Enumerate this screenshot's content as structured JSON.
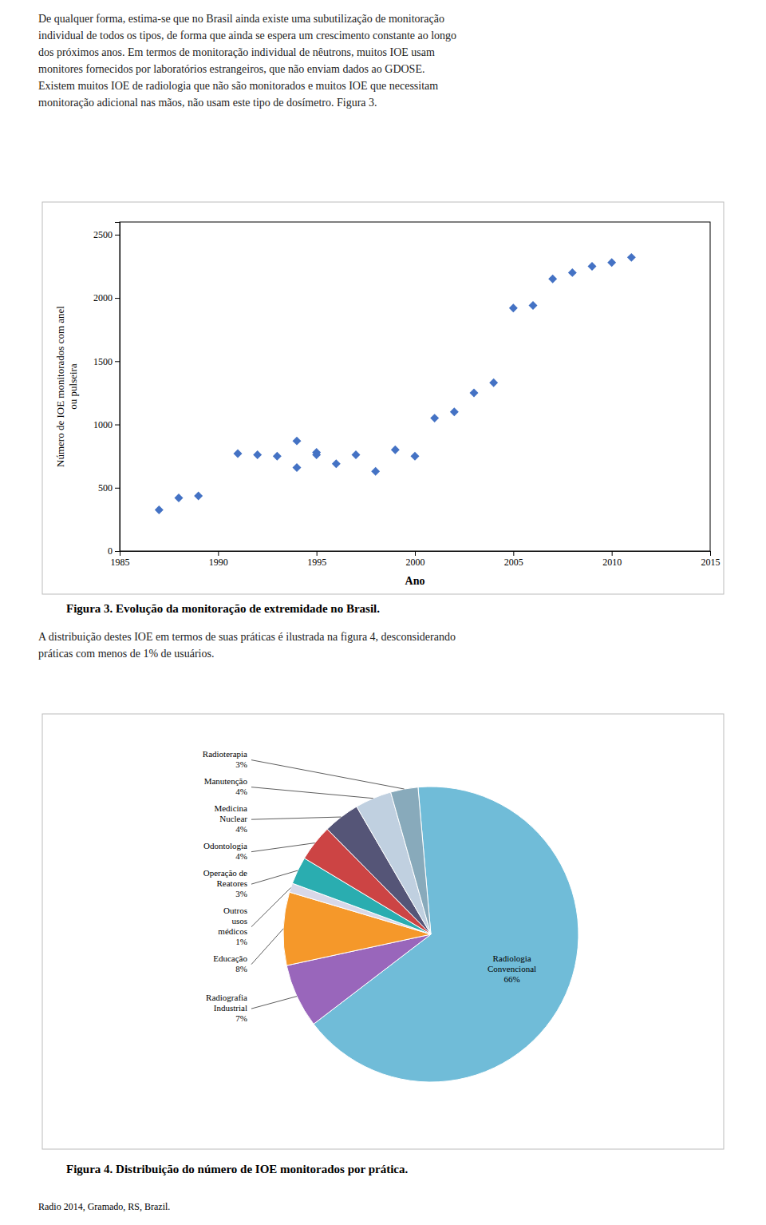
{
  "chart_data": [
    {
      "type": "scatter",
      "title": "Figura 3.  Evolução da monitoração de extremidade no Brasil.",
      "x_label": "Ano",
      "y_label": "Número de IOE monitorados com anel\nou pulseira",
      "x": [
        1987,
        1988,
        1989,
        1991,
        1992,
        1993,
        1994,
        1994,
        1995,
        1995,
        1996,
        1997,
        1998,
        1999,
        2000,
        2001,
        2002,
        2003,
        2004,
        2005,
        2006,
        2007,
        2008,
        2009,
        2010,
        2011
      ],
      "values": [
        325,
        420,
        435,
        770,
        760,
        750,
        660,
        870,
        780,
        760,
        690,
        760,
        630,
        800,
        750,
        1050,
        1100,
        1250,
        1330,
        1920,
        1940,
        2150,
        2200,
        2250,
        2280,
        2320
      ],
      "xlim": [
        1985,
        2015
      ],
      "ylim": [
        0,
        2600
      ],
      "xticks": [
        1985,
        1990,
        1995,
        2000,
        2005,
        2010,
        2015
      ],
      "yticks": [
        0,
        500,
        1000,
        1500,
        2000,
        2500
      ],
      "color": "#4472C4",
      "marker": "diamond",
      "grid": false
    },
    {
      "type": "pie",
      "title": "Figura 4.  Distribuição do número de IOE monitorados por prática.",
      "categories": [
        "Radiologia\nConvencional",
        "Radiografia\nIndustrial",
        "Educação",
        "Outros\nusos\nmédicos",
        "Operação de\nReatores",
        "Odontologia",
        "Medicina\nNuclear",
        "Manutenção",
        "Radioterapia"
      ],
      "values": [
        66,
        7,
        8,
        1,
        3,
        4,
        4,
        4,
        3
      ],
      "value_labels": [
        "66%",
        "7%",
        "8%",
        "1%",
        "3%",
        "4%",
        "4%",
        "4%",
        "3%"
      ],
      "colors": [
        "#70BCD8",
        "#9966BB",
        "#F5982A",
        "#D8D8E8",
        "#2AADB0",
        "#CC4444",
        "#555577",
        "#C0D0E0",
        "#88AABB"
      ],
      "data_labels": true
    }
  ],
  "paragraphs": [
    [
      "De qualquer forma, estima-se que no Brasil ainda existe uma subutilização de monitoração",
      "individual de todos os tipos, de forma que ainda se espera um crescimento constante ao longo",
      "dos próximos anos. Em termos de monitoração individual de nêutrons, muitos IOE usam",
      "monitores fornecidos por laboratórios estrangeiros, que não enviam dados ao GDOSE.",
      "Existem muitos IOE de radiologia que não são monitorados e muitos IOE que necessitam",
      "monitoração adicional nas mãos, não usam este tipo de dosímetro. Figura 3."
    ],
    [
      "A distribuição destes IOE em termos de suas práticas é ilustrada na figura 4, desconsiderando",
      "práticas com menos de 1% de usuários."
    ]
  ],
  "footer": "Radio 2014, Gramado, RS, Brazil."
}
